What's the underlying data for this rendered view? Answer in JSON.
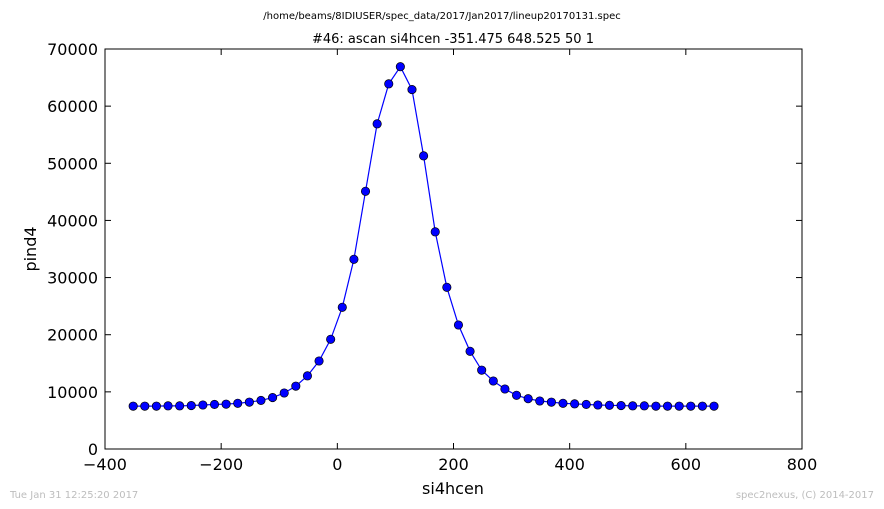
{
  "figure": {
    "suptitle": "/home/beams/8IDIUSER/spec_data/2017/Jan2017/lineup20170131.spec",
    "footer_left": "Tue Jan 31 12:25:20 2017",
    "footer_right": "spec2nexus, (C) 2014-2017"
  },
  "chart_data": {
    "type": "line",
    "title": "#46: ascan  si4hcen -351.475 648.525  50 1",
    "xlabel": "si4hcen",
    "ylabel": "pind4",
    "xlim": [
      -400,
      800
    ],
    "ylim": [
      0,
      70000
    ],
    "xticks": [
      -400,
      -200,
      0,
      200,
      400,
      600,
      800
    ],
    "yticks": [
      0,
      10000,
      20000,
      30000,
      40000,
      50000,
      60000,
      70000
    ],
    "xtick_labels": [
      "−400",
      "−200",
      "0",
      "200",
      "400",
      "600",
      "800"
    ],
    "ytick_labels": [
      "0",
      "10000",
      "20000",
      "30000",
      "40000",
      "50000",
      "60000",
      "70000"
    ],
    "grid": false,
    "marker": "circle",
    "color": "#0000ff",
    "series": [
      {
        "x": [
          -351.475,
          -331.475,
          -311.475,
          -291.475,
          -271.475,
          -251.475,
          -231.475,
          -211.475,
          -191.475,
          -171.475,
          -151.475,
          -131.475,
          -111.475,
          -91.475,
          -71.475,
          -51.475,
          -31.475,
          -11.475,
          8.525,
          28.525,
          48.525,
          68.525,
          88.525,
          108.525,
          128.525,
          148.525,
          168.525,
          188.525,
          208.525,
          228.525,
          248.525,
          268.525,
          288.525,
          308.525,
          328.525,
          348.525,
          368.525,
          388.525,
          408.525,
          428.525,
          448.525,
          468.525,
          488.525,
          508.525,
          528.525,
          548.525,
          568.525,
          588.525,
          608.525,
          628.525,
          648.525
        ],
        "y": [
          7500,
          7500,
          7500,
          7550,
          7550,
          7600,
          7700,
          7800,
          7850,
          8000,
          8200,
          8500,
          9000,
          9800,
          11000,
          12800,
          15400,
          19200,
          24800,
          33200,
          45100,
          56900,
          63900,
          66900,
          62900,
          51300,
          38000,
          28300,
          21700,
          17100,
          13800,
          11900,
          10500,
          9400,
          8800,
          8400,
          8200,
          8000,
          7900,
          7800,
          7700,
          7650,
          7600,
          7550,
          7550,
          7500,
          7500,
          7500,
          7500,
          7500,
          7500
        ]
      }
    ]
  }
}
